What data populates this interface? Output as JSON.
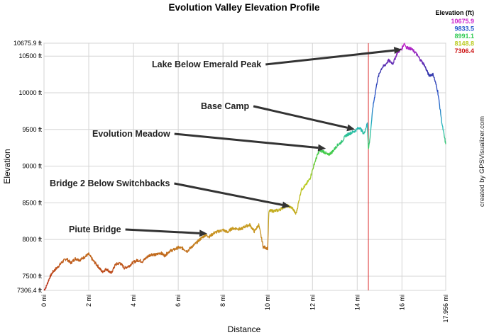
{
  "chart_data": {
    "type": "line",
    "title": "Evolution Valley Elevation Profile",
    "xlabel": "Distance",
    "ylabel": "Elevation",
    "credit": "created by GPSVisualizer.com",
    "xlim": [
      0,
      17.956
    ],
    "ylim": [
      7306.4,
      10675.9
    ],
    "x_ticks": [
      {
        "value": 0,
        "label": "0 mi"
      },
      {
        "value": 2,
        "label": "2 mi"
      },
      {
        "value": 4,
        "label": "4 mi"
      },
      {
        "value": 6,
        "label": "6 mi"
      },
      {
        "value": 8,
        "label": "8 mi"
      },
      {
        "value": 10,
        "label": "10 mi"
      },
      {
        "value": 12,
        "label": "12 mi"
      },
      {
        "value": 14,
        "label": "14 mi"
      },
      {
        "value": 16,
        "label": "16 mi"
      },
      {
        "value": 17.956,
        "label": "17.956 mi"
      }
    ],
    "y_ticks": [
      {
        "value": 7306.4,
        "label": "7306.4 ft"
      },
      {
        "value": 7500,
        "label": "7500 ft"
      },
      {
        "value": 8000,
        "label": "8000 ft"
      },
      {
        "value": 8500,
        "label": "8500 ft"
      },
      {
        "value": 9000,
        "label": "9000 ft"
      },
      {
        "value": 9500,
        "label": "9500 ft"
      },
      {
        "value": 10000,
        "label": "10000 ft"
      },
      {
        "value": 10500,
        "label": "10500 ft"
      },
      {
        "value": 10675.9,
        "label": "10675.9 ft"
      }
    ],
    "legend": {
      "title": "Elevation (ft)",
      "position": "top-right",
      "entries": [
        {
          "label": "10675.9",
          "color": "#cc22cc"
        },
        {
          "label": "9833.5",
          "color": "#2255cc"
        },
        {
          "label": "8991.1",
          "color": "#33cc55"
        },
        {
          "label": "8148.8",
          "color": "#bbcc22"
        },
        {
          "label": "7306.4",
          "color": "#cc1111"
        }
      ]
    },
    "marker_line": {
      "x": 14.5,
      "color": "#dd3333"
    },
    "series": [
      {
        "x": [
          0,
          0.1,
          0.25,
          0.4,
          0.6,
          0.8,
          1.0,
          1.2,
          1.4,
          1.6,
          1.8,
          2.0,
          2.2,
          2.4,
          2.6,
          2.8,
          3.0,
          3.2,
          3.4,
          3.6,
          3.8,
          4.0,
          4.2,
          4.4,
          4.6,
          4.8,
          5.0,
          5.2,
          5.4,
          5.6,
          5.8,
          6.0,
          6.2,
          6.4,
          6.6,
          6.8,
          7.0,
          7.2,
          7.4,
          7.6,
          7.8,
          8.0,
          8.2,
          8.4,
          8.6,
          8.8,
          9.0,
          9.2,
          9.4,
          9.6,
          9.8,
          10.0,
          10.05,
          10.1,
          10.3,
          10.5,
          10.7,
          10.9,
          11.0,
          11.1,
          11.25,
          11.3,
          11.5,
          11.7,
          11.9,
          12.1,
          12.3,
          12.5,
          12.7,
          12.9,
          13.1,
          13.3,
          13.5,
          13.7,
          13.9,
          14.1,
          14.3,
          14.45,
          14.5,
          14.55,
          14.7,
          14.9,
          15.0,
          15.1,
          15.25,
          15.4,
          15.6,
          15.8,
          16.0,
          16.1,
          16.2,
          16.4,
          16.6,
          16.8,
          17.0,
          17.2,
          17.4,
          17.6,
          17.8,
          17.956
        ],
        "y": [
          7306.4,
          7360,
          7480,
          7560,
          7620,
          7690,
          7740,
          7680,
          7740,
          7720,
          7760,
          7800,
          7710,
          7640,
          7560,
          7600,
          7540,
          7660,
          7680,
          7610,
          7640,
          7690,
          7720,
          7700,
          7760,
          7800,
          7790,
          7820,
          7780,
          7840,
          7860,
          7890,
          7880,
          7840,
          7900,
          7950,
          8010,
          8060,
          8040,
          8090,
          8110,
          8130,
          8100,
          8150,
          8150,
          8140,
          8180,
          8200,
          8110,
          8200,
          7900,
          7880,
          8370,
          8390,
          8390,
          8400,
          8440,
          8460,
          8440,
          8430,
          8350,
          8390,
          8680,
          8740,
          8840,
          9050,
          9210,
          9200,
          9150,
          9200,
          9280,
          9330,
          9420,
          9450,
          9480,
          9530,
          9440,
          9580,
          9250,
          9320,
          9800,
          10170,
          10270,
          10340,
          10380,
          10440,
          10400,
          10550,
          10600,
          10675.9,
          10620,
          10600,
          10550,
          10460,
          10380,
          10240,
          10250,
          10020,
          9560,
          9300
        ]
      }
    ],
    "annotations": [
      {
        "label": "Lake Below Emerald Peak",
        "x": 16.0,
        "y": 10590
      },
      {
        "label": "Base Camp",
        "x": 13.9,
        "y": 9500
      },
      {
        "label": "Evolution Meadow",
        "x": 12.6,
        "y": 9240
      },
      {
        "label": "Bridge 2 Below Switchbacks",
        "x": 11.0,
        "y": 8450
      },
      {
        "label": "Piute Bridge",
        "x": 7.3,
        "y": 8080
      }
    ]
  }
}
